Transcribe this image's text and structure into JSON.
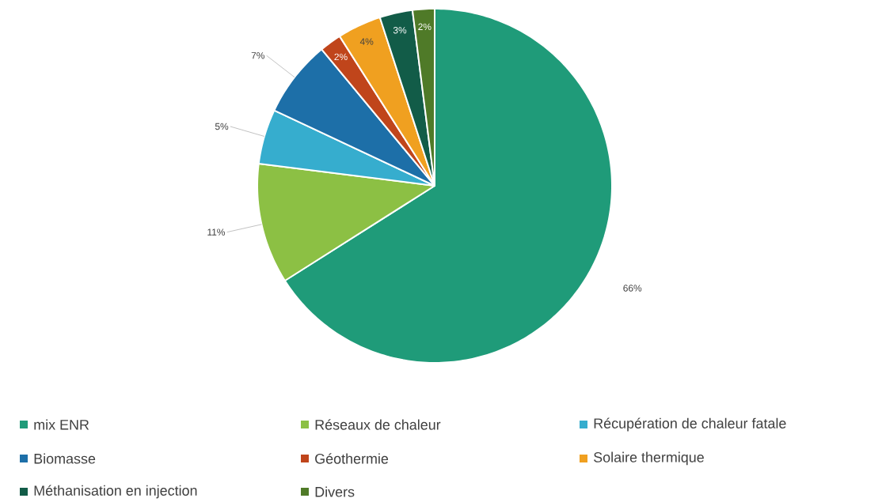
{
  "chart_data": {
    "type": "pie",
    "categories": [
      "mix ENR",
      "Réseaux de chaleur",
      "Récupération de chaleur fatale",
      "Biomasse",
      "Géothermie",
      "Solaire thermique",
      "Méthanisation en injection",
      "Divers"
    ],
    "values": [
      66,
      11,
      5,
      7,
      2,
      4,
      3,
      2
    ],
    "colors": [
      "#1f9b79",
      "#8cc044",
      "#36adce",
      "#1d6fa8",
      "#c0451b",
      "#f0a020",
      "#125c48",
      "#4f7a28"
    ],
    "value_labels": [
      "66%",
      "11%",
      "5%",
      "7%",
      "2%",
      "4%",
      "3%",
      "2%"
    ],
    "legend": "bottom"
  }
}
